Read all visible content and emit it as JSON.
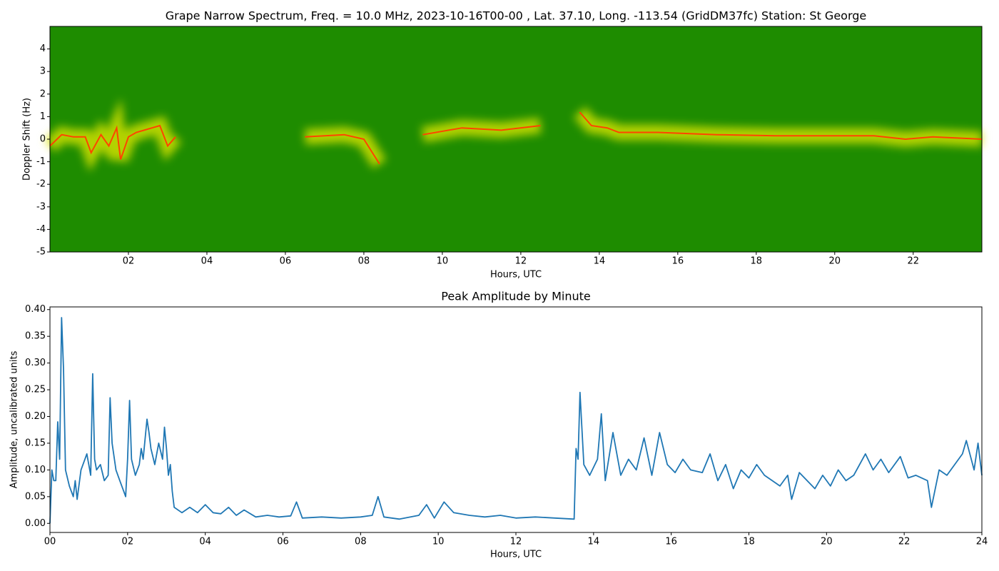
{
  "chart_data": [
    {
      "type": "spectrogram",
      "title": "Grape Narrow Spectrum, Freq. = 10.0 MHz, 2023-10-16T00-00 , Lat.  37.10, Long. -113.54 (GridDM37fc) Station: St George",
      "xlabel": "Hours, UTC",
      "ylabel": "Doppler Shift (Hz)",
      "background_color": "#1e8c00",
      "glow_color": "#d8e400",
      "color": "#ff4400",
      "x": [
        0,
        0.3,
        0.6,
        0.9,
        1.05,
        1.3,
        1.5,
        1.7,
        1.8,
        2.0,
        2.2,
        2.4,
        2.6,
        2.8,
        3.0,
        3.2,
        5.5,
        6.5,
        7.5,
        8.0,
        8.4,
        9.0,
        9.5,
        10.5,
        11.5,
        12.5,
        13.0,
        13.5,
        13.8,
        14.2,
        14.5,
        15.5,
        17,
        18.5,
        20,
        21,
        21.8,
        22.5,
        23.75
      ],
      "values": [
        -0.3,
        0.2,
        0.1,
        0.1,
        -0.6,
        0.2,
        -0.3,
        0.5,
        -0.9,
        0.1,
        0.3,
        0.4,
        0.5,
        0.6,
        -0.3,
        0.1,
        null,
        0.1,
        0.2,
        0.0,
        -1.1,
        null,
        0.2,
        0.5,
        0.4,
        0.6,
        null,
        1.2,
        0.6,
        0.5,
        0.3,
        0.3,
        0.2,
        0.15,
        0.15,
        0.15,
        0.0,
        0.1,
        0.0
      ],
      "xlim": [
        0,
        23.75
      ],
      "ylim": [
        -5,
        5
      ],
      "xticks": [
        {
          "value": 2,
          "label": "02"
        },
        {
          "value": 4,
          "label": "04"
        },
        {
          "value": 6,
          "label": "06"
        },
        {
          "value": 8,
          "label": "08"
        },
        {
          "value": 10,
          "label": "10"
        },
        {
          "value": 12,
          "label": "12"
        },
        {
          "value": 14,
          "label": "14"
        },
        {
          "value": 16,
          "label": "16"
        },
        {
          "value": 18,
          "label": "18"
        },
        {
          "value": 20,
          "label": "20"
        },
        {
          "value": 22,
          "label": "22"
        }
      ],
      "yticks": [
        -5,
        -4,
        -3,
        -2,
        -1,
        0,
        1,
        2,
        3,
        4
      ]
    },
    {
      "type": "line",
      "title": "Peak Amplitude by Minute",
      "xlabel": "Hours, UTC",
      "ylabel": "Amplitude, uncalibrated units",
      "color": "#1f77b4",
      "x": [
        0.0,
        0.05,
        0.1,
        0.15,
        0.2,
        0.25,
        0.3,
        0.35,
        0.4,
        0.5,
        0.6,
        0.65,
        0.7,
        0.8,
        0.9,
        0.95,
        1.0,
        1.05,
        1.1,
        1.15,
        1.2,
        1.3,
        1.4,
        1.5,
        1.55,
        1.6,
        1.7,
        1.8,
        1.9,
        1.95,
        2.0,
        2.05,
        2.1,
        2.2,
        2.3,
        2.35,
        2.4,
        2.5,
        2.55,
        2.6,
        2.7,
        2.8,
        2.9,
        2.95,
        3.0,
        3.05,
        3.1,
        3.15,
        3.2,
        3.4,
        3.6,
        3.8,
        4.0,
        4.2,
        4.4,
        4.6,
        4.8,
        5.0,
        5.3,
        5.6,
        5.9,
        6.2,
        6.35,
        6.5,
        7.0,
        7.5,
        8.0,
        8.3,
        8.45,
        8.6,
        9.0,
        9.5,
        9.7,
        9.9,
        10.15,
        10.4,
        10.8,
        11.2,
        11.6,
        12.0,
        12.5,
        13.0,
        13.5,
        13.55,
        13.6,
        13.65,
        13.75,
        13.9,
        14.1,
        14.2,
        14.3,
        14.5,
        14.7,
        14.9,
        15.1,
        15.3,
        15.5,
        15.7,
        15.9,
        16.1,
        16.3,
        16.5,
        16.8,
        17.0,
        17.2,
        17.4,
        17.6,
        17.8,
        18.0,
        18.2,
        18.4,
        18.6,
        18.8,
        19.0,
        19.1,
        19.3,
        19.5,
        19.7,
        19.9,
        20.1,
        20.3,
        20.5,
        20.7,
        21.0,
        21.2,
        21.4,
        21.6,
        21.9,
        22.1,
        22.3,
        22.6,
        22.7,
        22.9,
        23.1,
        23.3,
        23.5,
        23.6,
        23.8,
        23.9,
        24.0
      ],
      "values": [
        0.0,
        0.1,
        0.08,
        0.08,
        0.19,
        0.12,
        0.385,
        0.29,
        0.1,
        0.07,
        0.05,
        0.08,
        0.045,
        0.1,
        0.12,
        0.13,
        0.11,
        0.09,
        0.28,
        0.12,
        0.1,
        0.11,
        0.08,
        0.09,
        0.235,
        0.15,
        0.1,
        0.08,
        0.06,
        0.05,
        0.12,
        0.23,
        0.12,
        0.09,
        0.11,
        0.14,
        0.12,
        0.195,
        0.17,
        0.14,
        0.11,
        0.15,
        0.12,
        0.18,
        0.14,
        0.09,
        0.11,
        0.06,
        0.03,
        0.02,
        0.03,
        0.02,
        0.035,
        0.02,
        0.018,
        0.03,
        0.015,
        0.025,
        0.012,
        0.015,
        0.012,
        0.014,
        0.04,
        0.01,
        0.012,
        0.01,
        0.012,
        0.015,
        0.05,
        0.012,
        0.008,
        0.015,
        0.035,
        0.01,
        0.04,
        0.02,
        0.015,
        0.012,
        0.015,
        0.01,
        0.012,
        0.01,
        0.008,
        0.14,
        0.12,
        0.245,
        0.11,
        0.09,
        0.12,
        0.205,
        0.08,
        0.17,
        0.09,
        0.12,
        0.1,
        0.16,
        0.09,
        0.17,
        0.11,
        0.095,
        0.12,
        0.1,
        0.095,
        0.13,
        0.08,
        0.11,
        0.065,
        0.1,
        0.085,
        0.11,
        0.09,
        0.08,
        0.07,
        0.09,
        0.045,
        0.095,
        0.08,
        0.065,
        0.09,
        0.07,
        0.1,
        0.08,
        0.09,
        0.13,
        0.1,
        0.12,
        0.095,
        0.125,
        0.085,
        0.09,
        0.08,
        0.03,
        0.1,
        0.09,
        0.11,
        0.13,
        0.155,
        0.1,
        0.15,
        0.09
      ],
      "xlim": [
        0,
        24
      ],
      "ylim": [
        -0.017,
        0.405
      ],
      "xticks": [
        {
          "value": 0,
          "label": "00"
        },
        {
          "value": 2,
          "label": "02"
        },
        {
          "value": 4,
          "label": "04"
        },
        {
          "value": 6,
          "label": "06"
        },
        {
          "value": 8,
          "label": "08"
        },
        {
          "value": 10,
          "label": "10"
        },
        {
          "value": 12,
          "label": "12"
        },
        {
          "value": 14,
          "label": "14"
        },
        {
          "value": 16,
          "label": "16"
        },
        {
          "value": 18,
          "label": "18"
        },
        {
          "value": 20,
          "label": "20"
        },
        {
          "value": 22,
          "label": "22"
        },
        {
          "value": 24,
          "label": "24"
        }
      ],
      "yticks": [
        {
          "value": 0,
          "label": "0.00"
        },
        {
          "value": 0.05,
          "label": "0.05"
        },
        {
          "value": 0.1,
          "label": "0.10"
        },
        {
          "value": 0.15,
          "label": "0.15"
        },
        {
          "value": 0.2,
          "label": "0.20"
        },
        {
          "value": 0.25,
          "label": "0.25"
        },
        {
          "value": 0.3,
          "label": "0.30"
        },
        {
          "value": 0.35,
          "label": "0.35"
        },
        {
          "value": 0.4,
          "label": "0.40"
        }
      ]
    }
  ]
}
